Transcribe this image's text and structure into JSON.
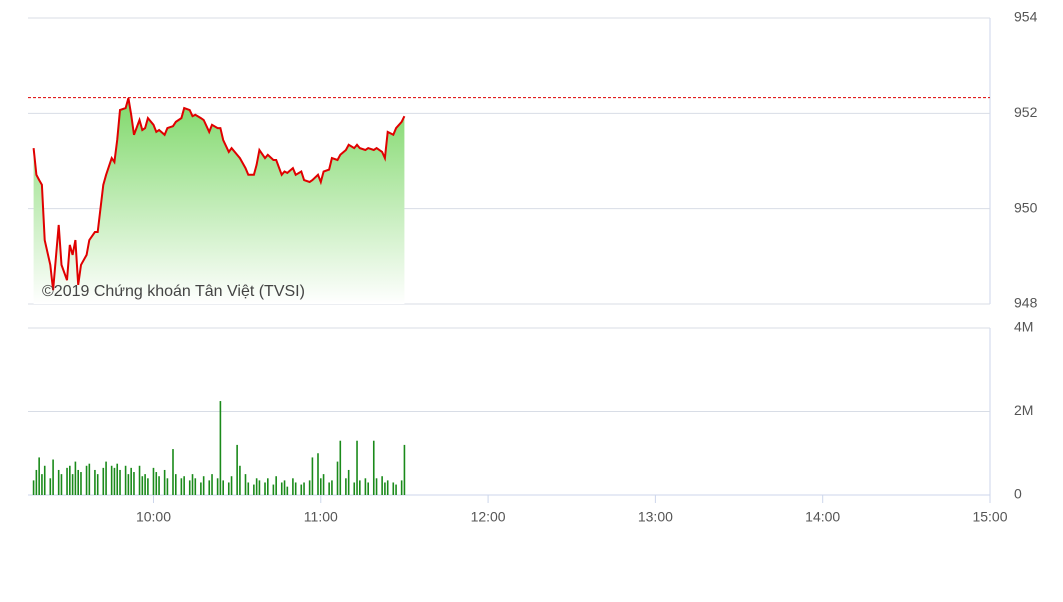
{
  "chart_data": [
    {
      "type": "line",
      "color": "#e00000",
      "watermark": "©2019 Chứng khoán Tân Việt (TVSI)",
      "reference_line": 952.33,
      "xlim": [
        555,
        900
      ],
      "ylim": [
        948,
        954
      ],
      "yticks": [
        948,
        950,
        952,
        954
      ],
      "grid": true,
      "x": [
        557,
        558,
        559,
        560,
        561,
        563,
        564,
        566,
        567,
        569,
        570,
        571,
        572,
        573,
        574,
        576,
        577,
        579,
        580,
        582,
        583,
        585,
        586,
        587,
        588,
        590,
        591,
        592,
        593,
        595,
        596,
        597,
        598,
        600,
        601,
        602,
        604,
        605,
        607,
        608,
        610,
        611,
        613,
        614,
        615,
        617,
        618,
        620,
        621,
        623,
        624,
        625,
        627,
        628,
        630,
        631,
        633,
        634,
        636,
        637,
        638,
        640,
        641,
        643,
        644,
        646,
        647,
        648,
        650,
        651,
        653,
        654,
        656,
        657,
        659,
        660,
        661,
        663,
        664,
        666,
        667,
        669,
        670,
        672,
        673,
        674,
        676,
        677,
        679,
        680,
        682,
        683,
        684,
        686,
        687,
        689,
        690
      ],
      "values": [
        951.27,
        950.71,
        950.6,
        950.5,
        949.34,
        948.82,
        948.29,
        949.66,
        948.82,
        948.5,
        949.24,
        949.03,
        949.34,
        948.4,
        948.82,
        949.03,
        949.34,
        949.51,
        949.51,
        950.5,
        950.71,
        951.06,
        950.98,
        951.44,
        952.07,
        952.11,
        952.32,
        951.97,
        951.55,
        951.86,
        951.65,
        951.69,
        951.9,
        951.76,
        951.61,
        951.65,
        951.55,
        951.69,
        951.73,
        951.82,
        951.9,
        952.11,
        952.07,
        951.94,
        951.97,
        951.9,
        951.86,
        951.61,
        951.76,
        951.69,
        951.69,
        951.44,
        951.19,
        951.27,
        951.13,
        951.06,
        950.85,
        950.71,
        950.71,
        950.92,
        951.23,
        951.06,
        951.13,
        951.02,
        951.02,
        950.71,
        950.78,
        950.75,
        950.85,
        950.71,
        950.78,
        950.6,
        950.56,
        950.6,
        950.71,
        950.56,
        950.78,
        950.82,
        951.06,
        951.02,
        951.13,
        951.23,
        951.34,
        951.27,
        951.34,
        951.27,
        951.23,
        951.27,
        951.23,
        951.27,
        951.19,
        951.06,
        951.61,
        951.55,
        951.69,
        951.82,
        951.94
      ]
    },
    {
      "type": "bar",
      "color": "#1a8a1a",
      "xlim": [
        555,
        900
      ],
      "ylim": [
        0,
        4000000
      ],
      "yticks": [
        0,
        {
          "value": 2000000,
          "label": "2M"
        },
        {
          "value": 4000000,
          "label": "4M"
        }
      ],
      "grid": true,
      "xticks": [
        {
          "value": 600,
          "label": "10:00"
        },
        {
          "value": 660,
          "label": "11:00"
        },
        {
          "value": 720,
          "label": "12:00"
        },
        {
          "value": 780,
          "label": "13:00"
        },
        {
          "value": 840,
          "label": "14:00"
        },
        {
          "value": 900,
          "label": "15:00"
        }
      ],
      "x": [
        557,
        558,
        559,
        560,
        561,
        563,
        564,
        566,
        567,
        569,
        570,
        571,
        572,
        573,
        574,
        576,
        577,
        579,
        580,
        582,
        583,
        585,
        586,
        587,
        588,
        590,
        591,
        592,
        593,
        595,
        596,
        597,
        598,
        600,
        601,
        602,
        604,
        605,
        607,
        608,
        610,
        611,
        613,
        614,
        615,
        617,
        618,
        620,
        621,
        623,
        624,
        625,
        627,
        628,
        630,
        631,
        633,
        634,
        636,
        637,
        638,
        640,
        641,
        643,
        644,
        646,
        647,
        648,
        650,
        651,
        653,
        654,
        656,
        657,
        659,
        660,
        661,
        663,
        664,
        666,
        667,
        669,
        670,
        672,
        673,
        674,
        676,
        677,
        679,
        680,
        682,
        683,
        684,
        686,
        687,
        689,
        690
      ],
      "values": [
        350000,
        600000,
        900000,
        500000,
        700000,
        400000,
        850000,
        600000,
        500000,
        650000,
        700000,
        500000,
        800000,
        600000,
        550000,
        700000,
        750000,
        600000,
        500000,
        650000,
        800000,
        700000,
        650000,
        750000,
        600000,
        700000,
        500000,
        650000,
        550000,
        700000,
        450000,
        500000,
        400000,
        650000,
        550000,
        450000,
        600000,
        400000,
        1100000,
        500000,
        400000,
        450000,
        350000,
        500000,
        400000,
        300000,
        450000,
        350000,
        500000,
        400000,
        2250000,
        350000,
        300000,
        450000,
        1200000,
        700000,
        500000,
        300000,
        250000,
        400000,
        350000,
        300000,
        400000,
        250000,
        450000,
        300000,
        350000,
        200000,
        400000,
        300000,
        250000,
        300000,
        350000,
        900000,
        1000000,
        400000,
        500000,
        300000,
        350000,
        800000,
        1300000,
        400000,
        600000,
        300000,
        1300000,
        350000,
        400000,
        300000,
        1300000,
        400000,
        450000,
        300000,
        350000,
        300000,
        250000,
        350000,
        1200000
      ]
    }
  ]
}
